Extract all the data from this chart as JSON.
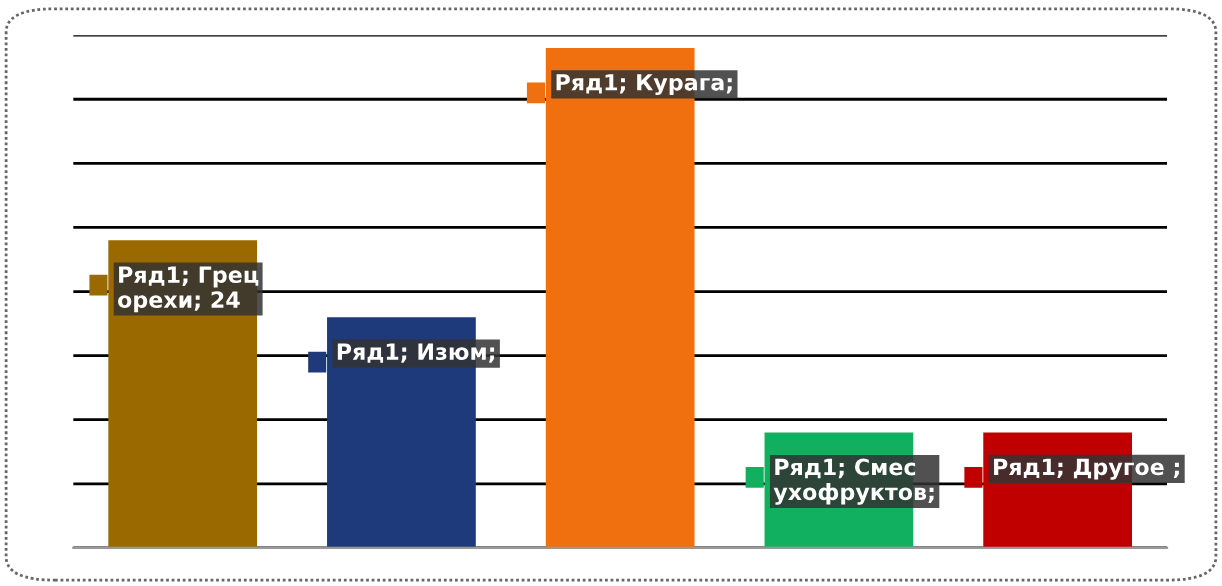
{
  "chart_data": {
    "type": "bar",
    "ylim": [
      0,
      40
    ],
    "yticks": [
      {
        "value": 0,
        "label": null
      },
      {
        "value": 5,
        "label": null
      },
      {
        "value": 10,
        "label": null
      },
      {
        "value": 15,
        "label": null
      },
      {
        "value": 20,
        "label": null
      },
      {
        "value": 25,
        "label": null
      },
      {
        "value": 30,
        "label": null
      },
      {
        "value": 35,
        "label": null
      },
      {
        "value": 40,
        "label": null
      }
    ],
    "categories": [
      null,
      null,
      null,
      null,
      null
    ],
    "values": [
      24,
      18,
      39,
      9,
      9
    ],
    "colors": [
      "#9a6a00",
      "#1f3a7a",
      "#f07010",
      "#10b060",
      "#c00000"
    ],
    "value_labels": [
      "Ряд1; Грец\nорехи; 24",
      "Ряд1; Изюм;",
      "Ряд1; Курага;",
      "Ряд1; Смес\nухофруктов;",
      "Ряд1; Другое ;"
    ],
    "grid": "y",
    "tick_labels": false,
    "legend": false
  }
}
